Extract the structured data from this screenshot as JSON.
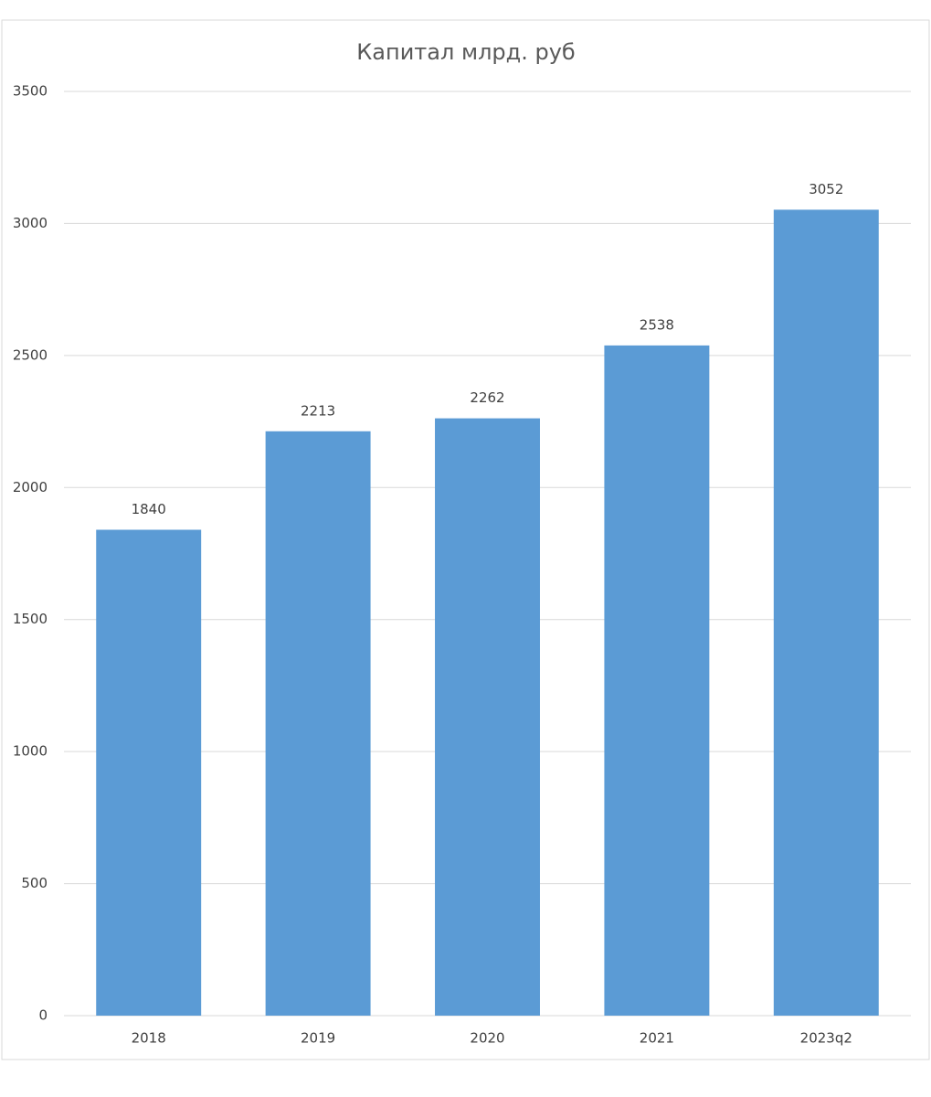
{
  "chart_data": {
    "type": "bar",
    "title": "Капитал млрд. руб",
    "categories": [
      "2018",
      "2019",
      "2020",
      "2021",
      "2023q2"
    ],
    "values": [
      1840,
      2213,
      2262,
      2538,
      3052
    ],
    "color": "#5b9bd5",
    "ylim": [
      0,
      3500
    ],
    "yticks": [
      0,
      500,
      1000,
      1500,
      2000,
      2500,
      3000,
      3500
    ],
    "grid": true
  }
}
